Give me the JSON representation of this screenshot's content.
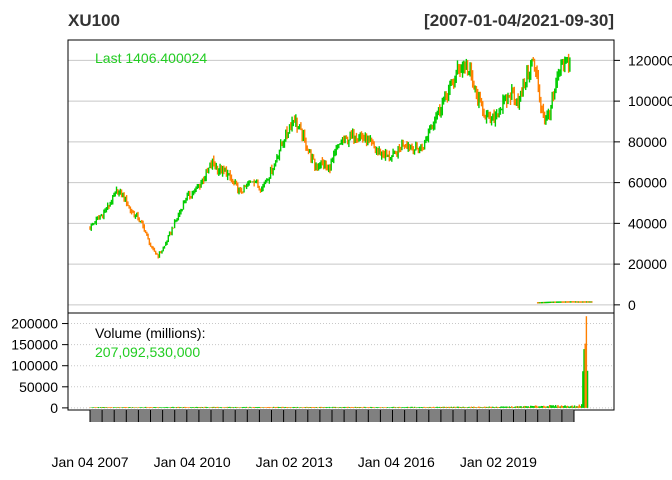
{
  "chart_data": {
    "type": "candlestick",
    "title": "XU100",
    "date_range": "[2007-01-04/2021-09-30]",
    "last_label": "Last 1406.400024",
    "volume_label": "Volume (millions):",
    "volume_value": "207,092,530,000",
    "price_yticks": [
      "120000",
      "100000",
      "80000",
      "60000",
      "40000",
      "20000",
      "0"
    ],
    "price_ylim": [
      -4000,
      130000
    ],
    "volume_yticks": [
      "200000",
      "150000",
      "100000",
      "50000",
      "0"
    ],
    "volume_ylim": [
      -5000,
      225000
    ],
    "x_labels": [
      "Jan 04 2007",
      "Jan 04 2010",
      "Jan 02 2013",
      "Jan 04 2016",
      "Jan 02 2019"
    ],
    "x_range": [
      2007.0,
      2021.75
    ],
    "x_label_positions": [
      2007.0,
      2010.0,
      2013.0,
      2016.0,
      2019.0
    ],
    "price_series": {
      "x": [
        2007.0,
        2007.2,
        2007.4,
        2007.6,
        2007.8,
        2008.0,
        2008.2,
        2008.4,
        2008.6,
        2008.8,
        2009.0,
        2009.2,
        2009.4,
        2009.6,
        2009.8,
        2010.0,
        2010.2,
        2010.4,
        2010.6,
        2010.8,
        2011.0,
        2011.2,
        2011.4,
        2011.6,
        2011.8,
        2012.0,
        2012.2,
        2012.4,
        2012.6,
        2012.8,
        2013.0,
        2013.2,
        2013.4,
        2013.6,
        2013.8,
        2014.0,
        2014.2,
        2014.4,
        2014.6,
        2014.8,
        2015.0,
        2015.2,
        2015.4,
        2015.6,
        2015.8,
        2016.0,
        2016.2,
        2016.4,
        2016.6,
        2016.8,
        2017.0,
        2017.2,
        2017.4,
        2017.6,
        2017.8,
        2018.0,
        2018.2,
        2018.4,
        2018.6,
        2018.8,
        2019.0,
        2019.2,
        2019.4,
        2019.6,
        2019.8,
        2020.0,
        2020.15,
        2020.25,
        2020.4,
        2020.6,
        2020.8,
        2021.0,
        2021.1
      ],
      "values": [
        38000,
        42000,
        45000,
        50000,
        56000,
        53000,
        46000,
        43000,
        37000,
        28000,
        24000,
        29000,
        37000,
        44000,
        52000,
        55000,
        58000,
        64000,
        70000,
        66000,
        65000,
        60000,
        55000,
        58000,
        62000,
        57000,
        62000,
        68000,
        78000,
        85000,
        92000,
        84000,
        77000,
        68000,
        70000,
        66000,
        74000,
        80000,
        82000,
        84000,
        82000,
        80000,
        76000,
        74000,
        72000,
        74000,
        80000,
        78000,
        76000,
        78000,
        88000,
        94000,
        100000,
        107000,
        115000,
        118000,
        112000,
        100000,
        94000,
        90000,
        95000,
        100000,
        104000,
        100000,
        110000,
        120000,
        110000,
        98000,
        90000,
        100000,
        115000,
        118000,
        120000
      ]
    },
    "tail_series": {
      "x": [
        2020.15,
        2020.4,
        2020.6,
        2020.8,
        2021.0,
        2021.2,
        2021.4,
        2021.6,
        2021.75
      ],
      "values": [
        1000,
        1150,
        1300,
        1350,
        1400,
        1450,
        1380,
        1420,
        1406
      ]
    },
    "volume_series": {
      "x": [
        2007.0,
        2008.0,
        2009.0,
        2010.0,
        2011.0,
        2012.0,
        2013.0,
        2014.0,
        2015.0,
        2016.0,
        2017.0,
        2018.0,
        2019.0,
        2019.5,
        2020.0,
        2020.5,
        2021.0,
        2021.3,
        2021.45,
        2021.55,
        2021.62
      ],
      "values": [
        1500,
        1500,
        1800,
        1800,
        1800,
        1800,
        1800,
        1800,
        1800,
        1800,
        2000,
        2200,
        2500,
        3000,
        4000,
        5000,
        5000,
        4000,
        8000,
        210000,
        130000
      ]
    },
    "colors": {
      "up": "#00cc00",
      "down": "#ff7f00",
      "grid": "#c8c8c8",
      "last": "#22cc22",
      "frame": "#000000",
      "xaxis_band": "#808080"
    },
    "grid": true
  }
}
